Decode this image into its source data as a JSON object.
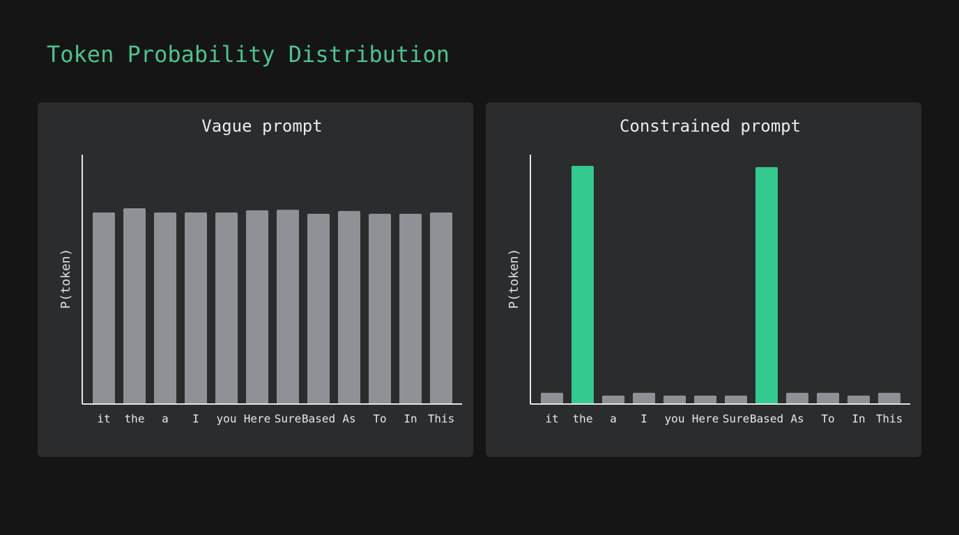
{
  "title": "Token Probability Distribution",
  "chart_data": [
    {
      "type": "bar",
      "title": "Vague prompt",
      "y_label": "P(token)",
      "categories": [
        "it",
        "the",
        "a",
        "I",
        "you",
        "Here",
        "Sure",
        "Based",
        "As",
        "To",
        "In",
        "This"
      ],
      "values": [
        76.8,
        78.5,
        76.8,
        76.8,
        76.8,
        77.7,
        77.9,
        76.3,
        77.4,
        76.3,
        76.3,
        76.8
      ],
      "colors": [
        "#8e9196",
        "#8e9196",
        "#8e9196",
        "#8e9196",
        "#8e9196",
        "#8e9196",
        "#8e9196",
        "#8e9196",
        "#8e9196",
        "#8e9196",
        "#8e9196",
        "#8e9196"
      ],
      "ylim": [
        0,
        100
      ]
    },
    {
      "type": "bar",
      "title": "Constrained prompt",
      "y_label": "P(token)",
      "categories": [
        "it",
        "the",
        "a",
        "I",
        "you",
        "Here",
        "Sure",
        "Based",
        "As",
        "To",
        "In",
        "This"
      ],
      "values": [
        4.5,
        95.5,
        3.4,
        4.5,
        3.4,
        3.4,
        3.4,
        95.0,
        4.5,
        4.5,
        3.4,
        4.5
      ],
      "colors": [
        "#8e9196",
        "#34c98e",
        "#8e9196",
        "#8e9196",
        "#8e9196",
        "#8e9196",
        "#8e9196",
        "#34c98e",
        "#8e9196",
        "#8e9196",
        "#8e9196",
        "#8e9196"
      ],
      "ylim": [
        0,
        100
      ]
    }
  ]
}
